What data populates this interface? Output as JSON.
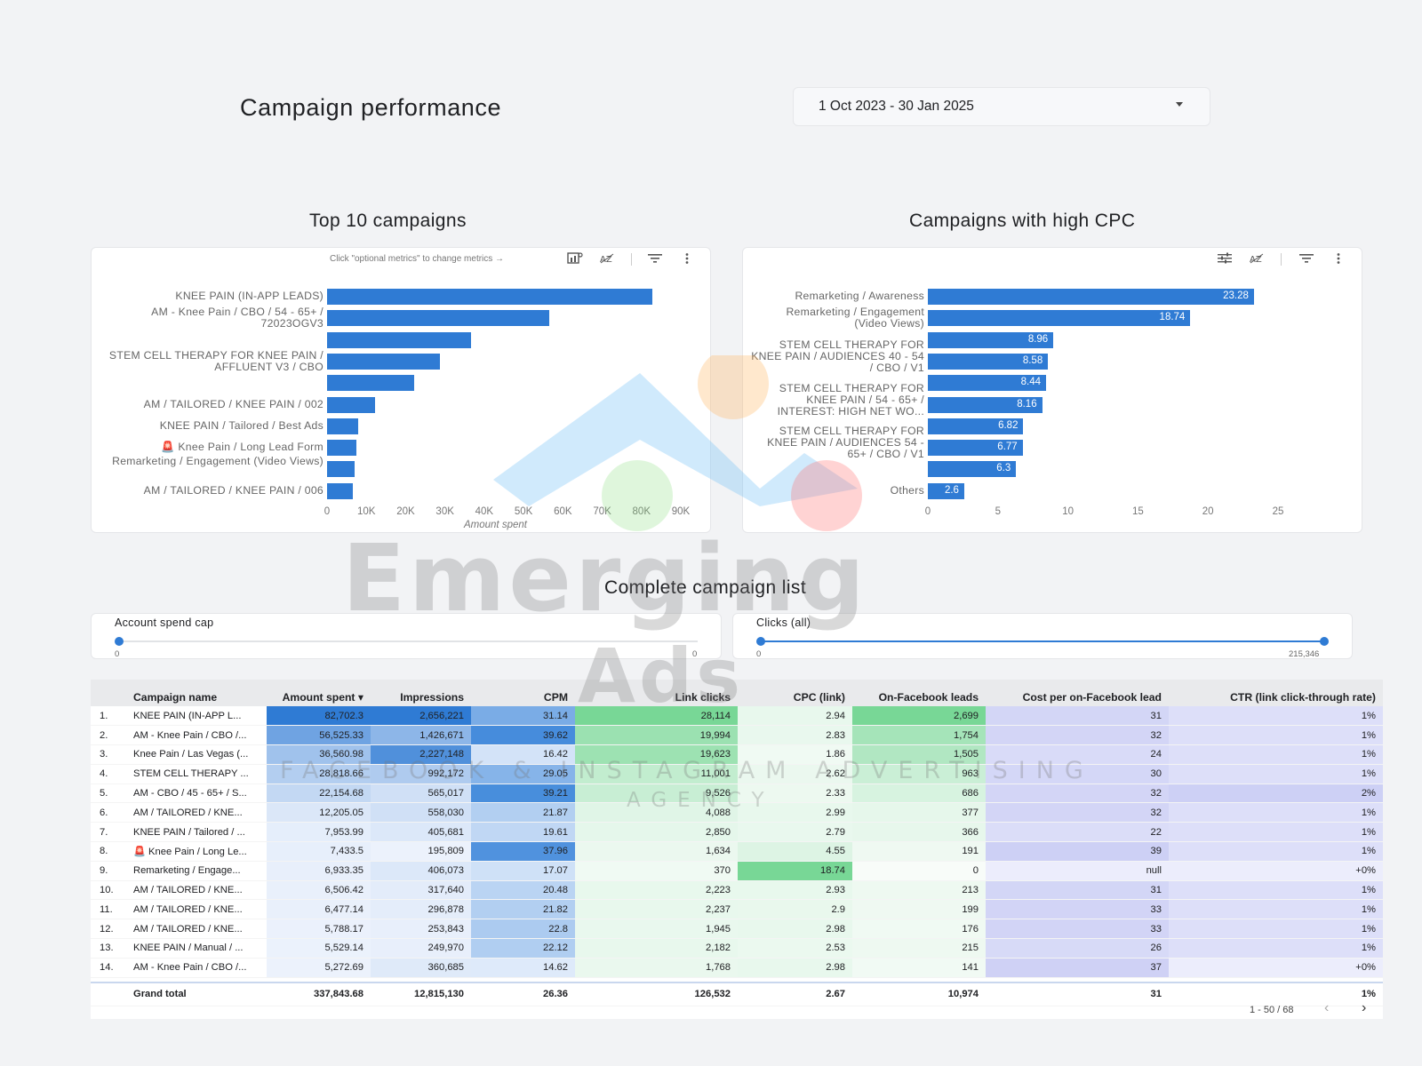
{
  "header": {
    "title": "Campaign performance",
    "date_range": "1 Oct 2023 - 30 Jan 2025"
  },
  "top10": {
    "title": "Top 10 campaigns",
    "hint": "Click \"optional metrics\" to change metrics →",
    "x_axis_title": "Amount spent",
    "toolbar_icons": [
      "optional-metrics-icon",
      "sort-az-icon",
      "filter-icon",
      "more-vert-icon"
    ]
  },
  "highcpc": {
    "title": "Campaigns with high CPC",
    "toolbar_icons": [
      "drill-icon",
      "sort-az-icon",
      "filter-icon",
      "more-vert-icon"
    ]
  },
  "chart_data": [
    {
      "type": "bar",
      "orientation": "horizontal",
      "title": "Top 10 campaigns",
      "xlabel": "Amount spent",
      "categories": [
        "KNEE PAIN (IN-APP LEADS)",
        "AM - Knee Pain / CBO / 54 - 65+ / 72023OGV3",
        "",
        "STEM CELL THERAPY FOR KNEE PAIN / AFFLUENT V3 / CBO",
        "",
        "AM / TAILORED / KNEE PAIN / 002",
        "KNEE PAIN / Tailored / Best Ads",
        "🚨 Knee Pain / Long Lead Form",
        "Remarketing / Engagement (Video Views)",
        "AM / TAILORED / KNEE PAIN / 006"
      ],
      "values": [
        82702.3,
        56525.33,
        36560.98,
        28818.66,
        22154.68,
        12205.05,
        7953.99,
        7433.5,
        6933.35,
        6506.42
      ],
      "xlim": [
        0,
        90000
      ],
      "ticks": [
        "0",
        "10K",
        "20K",
        "30K",
        "40K",
        "50K",
        "60K",
        "70K",
        "80K",
        "90K"
      ]
    },
    {
      "type": "bar",
      "orientation": "horizontal",
      "title": "Campaigns with high CPC",
      "categories": [
        "Remarketing / Awareness",
        "Remarketing / Engagement (Video Views)",
        "",
        "STEM CELL THERAPY FOR KNEE PAIN / AUDIENCES 40 - 54 / CBO / V1",
        "",
        "STEM CELL THERAPY FOR KNEE PAIN / 54 - 65+ / INTEREST: HIGH NET WO...",
        "",
        "STEM CELL THERAPY FOR KNEE PAIN / AUDIENCES 54 - 65+ / CBO / V1",
        "",
        "Others"
      ],
      "values": [
        23.28,
        18.74,
        8.96,
        8.58,
        8.44,
        8.16,
        6.82,
        6.77,
        6.3,
        2.6
      ],
      "value_labels": [
        "23.28",
        "18.74",
        "8.96",
        "8.58",
        "8.44",
        "8.16",
        "6.82",
        "6.77",
        "6.3",
        "2.6"
      ],
      "xlim": [
        0,
        25
      ],
      "ticks": [
        "0",
        "5",
        "10",
        "15",
        "20",
        "25"
      ]
    }
  ],
  "list": {
    "title": "Complete campaign list",
    "spend_cap": {
      "label": "Account spend cap",
      "min": "0",
      "max": "0"
    },
    "clicks": {
      "label": "Clicks (all)",
      "min": "0",
      "max": "215,346"
    },
    "columns": [
      "Campaign name",
      "Amount spent",
      "Impressions",
      "CPM",
      "Link clicks",
      "CPC (link)",
      "On-Facebook leads",
      "Cost per on-Facebook lead",
      "CTR (link click-through rate)"
    ],
    "rows": [
      [
        "1.",
        "KNEE PAIN (IN-APP L...",
        "82,702.3",
        "2,656,221",
        "31.14",
        "28,114",
        "2.94",
        "2,699",
        "31",
        "1%"
      ],
      [
        "2.",
        "AM - Knee Pain / CBO /...",
        "56,525.33",
        "1,426,671",
        "39.62",
        "19,994",
        "2.83",
        "1,754",
        "32",
        "1%"
      ],
      [
        "3.",
        "Knee Pain / Las Vegas (...",
        "36,560.98",
        "2,227,148",
        "16.42",
        "19,623",
        "1.86",
        "1,505",
        "24",
        "1%"
      ],
      [
        "4.",
        "STEM CELL THERAPY ...",
        "28,818.66",
        "992,172",
        "29.05",
        "11,001",
        "2.62",
        "963",
        "30",
        "1%"
      ],
      [
        "5.",
        "AM - CBO / 45 - 65+ / S...",
        "22,154.68",
        "565,017",
        "39.21",
        "9,526",
        "2.33",
        "686",
        "32",
        "2%"
      ],
      [
        "6.",
        "AM / TAILORED / KNE...",
        "12,205.05",
        "558,030",
        "21.87",
        "4,088",
        "2.99",
        "377",
        "32",
        "1%"
      ],
      [
        "7.",
        "KNEE PAIN / Tailored / ...",
        "7,953.99",
        "405,681",
        "19.61",
        "2,850",
        "2.79",
        "366",
        "22",
        "1%"
      ],
      [
        "8.",
        "🚨 Knee Pain / Long Le...",
        "7,433.5",
        "195,809",
        "37.96",
        "1,634",
        "4.55",
        "191",
        "39",
        "1%"
      ],
      [
        "9.",
        "Remarketing / Engage...",
        "6,933.35",
        "406,073",
        "17.07",
        "370",
        "18.74",
        "0",
        "null",
        "+0%"
      ],
      [
        "10.",
        "AM / TAILORED / KNE...",
        "6,506.42",
        "317,640",
        "20.48",
        "2,223",
        "2.93",
        "213",
        "31",
        "1%"
      ],
      [
        "11.",
        "AM / TAILORED / KNE...",
        "6,477.14",
        "296,878",
        "21.82",
        "2,237",
        "2.9",
        "199",
        "33",
        "1%"
      ],
      [
        "12.",
        "AM / TAILORED / KNE...",
        "5,788.17",
        "253,843",
        "22.8",
        "1,945",
        "2.98",
        "176",
        "33",
        "1%"
      ],
      [
        "13.",
        "KNEE PAIN / Manual / ...",
        "5,529.14",
        "249,970",
        "22.12",
        "2,182",
        "2.53",
        "215",
        "26",
        "1%"
      ],
      [
        "14.",
        "AM - Knee Pain / CBO /...",
        "5,272.69",
        "360,685",
        "14.62",
        "1,768",
        "2.98",
        "141",
        "37",
        "+0%"
      ]
    ],
    "total": [
      "Grand total",
      "337,843.68",
      "12,815,130",
      "26.36",
      "126,532",
      "2.67",
      "10,974",
      "31",
      "1%"
    ],
    "pagination": "1 - 50 / 68",
    "sort_indicator": "▾"
  },
  "watermark": {
    "line1": "Emerging",
    "line2": "Ads",
    "line3": "FACEBOOK & INSTAGRAM ADVERTISING",
    "line4": "AGENCY"
  },
  "colors": {
    "bar": "#2f7bd4",
    "heat_blue": "#2f7bd4",
    "heat_green": "#57c97f",
    "heat_lavender": "#c9ccf2"
  }
}
